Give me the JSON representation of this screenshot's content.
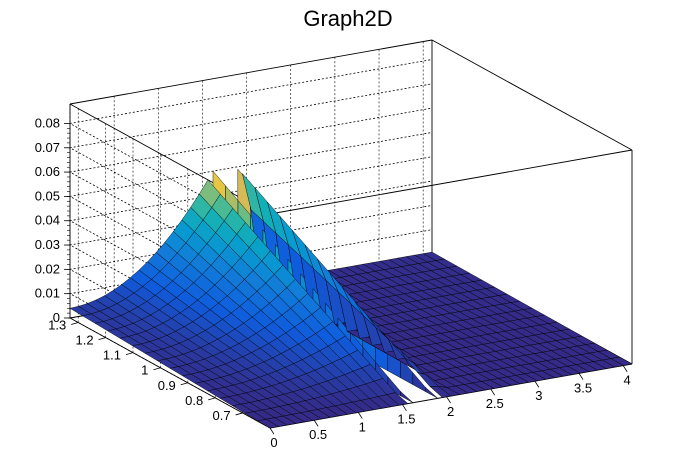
{
  "chart_data": {
    "type": "surface",
    "title": "Graph2D",
    "xlim": [
      0,
      4.1
    ],
    "ylim": [
      0.6,
      1.33
    ],
    "zlim": [
      0,
      0.088
    ],
    "x_ticks": [
      "0",
      "0.5",
      "1",
      "1.5",
      "2",
      "2.5",
      "3",
      "3.5",
      "4"
    ],
    "y_ticks": [
      "0.7",
      "0.8",
      "0.9",
      "1",
      "1.1",
      "1.2",
      "1.3"
    ],
    "z_ticks": [
      "0",
      "0.01",
      "0.02",
      "0.03",
      "0.04",
      "0.05",
      "0.06",
      "0.07",
      "0.08"
    ],
    "grid": true,
    "colormap": "viridis-like",
    "colors": {
      "low": "#352a87",
      "mid": "#1ea3b5",
      "high": "#f9fb0e"
    },
    "surface": {
      "gap_x": [
        1.62,
        1.9
      ],
      "peak_z": 0.05,
      "flat_region_x": [
        1.9,
        4.1
      ],
      "rim_y": 0.62
    }
  }
}
